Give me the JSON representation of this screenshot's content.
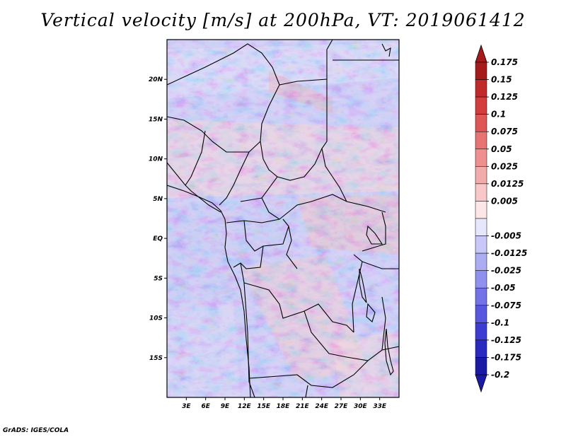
{
  "title": "Vertical velocity [m/s] at 200hPa, VT: 2019061412",
  "credit": "GrADS: IGES/COLA",
  "map": {
    "region": "Central Africa",
    "lon_range": [
      0,
      36
    ],
    "lat_range": [
      -20,
      25
    ],
    "lat_ticks": [
      {
        "lat": 20,
        "label": "20N"
      },
      {
        "lat": 15,
        "label": "15N"
      },
      {
        "lat": 10,
        "label": "10N"
      },
      {
        "lat": 5,
        "label": "5N"
      },
      {
        "lat": 0,
        "label": "EQ"
      },
      {
        "lat": -5,
        "label": "5S"
      },
      {
        "lat": -10,
        "label": "10S"
      },
      {
        "lat": -15,
        "label": "15S"
      }
    ],
    "lon_ticks": [
      {
        "lon": 3,
        "label": "3E"
      },
      {
        "lon": 6,
        "label": "6E"
      },
      {
        "lon": 9,
        "label": "9E"
      },
      {
        "lon": 12,
        "label": "12E"
      },
      {
        "lon": 15,
        "label": "15E"
      },
      {
        "lon": 18,
        "label": "18E"
      },
      {
        "lon": 21,
        "label": "21E"
      },
      {
        "lon": 24,
        "label": "24E"
      },
      {
        "lon": 27,
        "label": "27E"
      },
      {
        "lon": 30,
        "label": "30E"
      },
      {
        "lon": 33,
        "label": "33E"
      }
    ]
  },
  "colorbar": {
    "levels": [
      {
        "label": "0.175",
        "color": "#a51a1a"
      },
      {
        "label": "0.15",
        "color": "#c12a2a"
      },
      {
        "label": "0.125",
        "color": "#d33d3d"
      },
      {
        "label": "0.1",
        "color": "#df5656"
      },
      {
        "label": "0.075",
        "color": "#e77373"
      },
      {
        "label": "0.05",
        "color": "#ee9090"
      },
      {
        "label": "0.025",
        "color": "#f3acac"
      },
      {
        "label": "0.0125",
        "color": "#f8c8c8"
      },
      {
        "label": "0.005",
        "color": "#fde6e6"
      },
      {
        "label": "",
        "color": "#ffffff"
      },
      {
        "label": "-0.005",
        "color": "#e6e6fd"
      },
      {
        "label": "-0.0125",
        "color": "#c8c8f8"
      },
      {
        "label": "-0.025",
        "color": "#acacf3"
      },
      {
        "label": "-0.05",
        "color": "#9090ee"
      },
      {
        "label": "-0.075",
        "color": "#7373e7"
      },
      {
        "label": "-0.1",
        "color": "#5656df"
      },
      {
        "label": "-0.125",
        "color": "#3d3dd3"
      },
      {
        "label": "-0.175",
        "color": "#2a2ac1"
      },
      {
        "label": "-0.2",
        "color": "#1a1aa5"
      }
    ],
    "top_arrow_color": "#a51a1a",
    "bottom_arrow_color": "#1a1aa5"
  }
}
